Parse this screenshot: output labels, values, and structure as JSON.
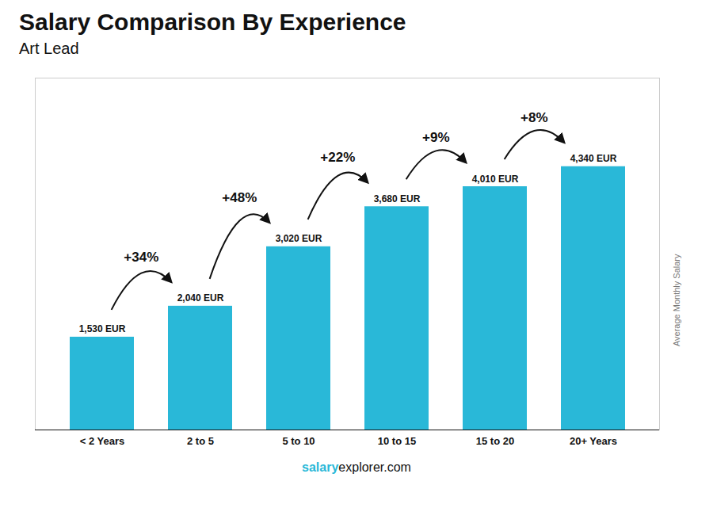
{
  "chart_data": {
    "type": "bar",
    "title": "Salary Comparison By Experience",
    "subtitle": "Art Lead",
    "ylabel": "Average Monthly Salary",
    "categories": [
      "< 2 Years",
      "2 to 5",
      "5 to 10",
      "10 to 15",
      "15 to 20",
      "20+ Years"
    ],
    "values": [
      1530,
      2040,
      3020,
      3680,
      4010,
      4340
    ],
    "value_labels": [
      "1,530 EUR",
      "2,040 EUR",
      "3,020 EUR",
      "3,680 EUR",
      "4,010 EUR",
      "4,340 EUR"
    ],
    "data_labels": true,
    "annotations": [
      "+34%",
      "+48%",
      "+22%",
      "+9%",
      "+8%"
    ],
    "caption": [
      "salary",
      "explorer.com"
    ],
    "color": "#29b8d8",
    "ylim": [
      0,
      5800
    ],
    "yticks": [],
    "tick_labels": "x",
    "grid": false
  }
}
